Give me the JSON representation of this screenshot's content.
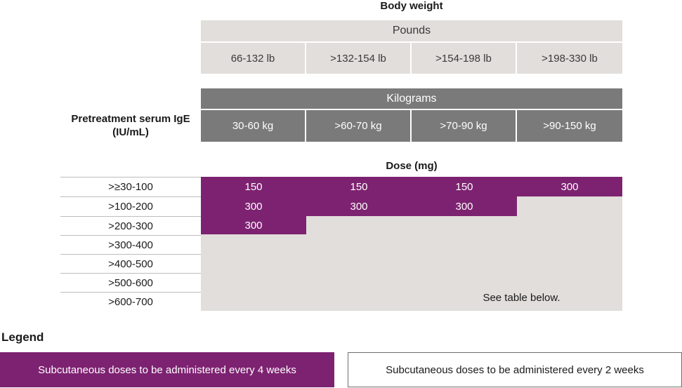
{
  "header": {
    "body_weight_title": "Body weight",
    "pounds_label": "Pounds",
    "pounds_ranges": [
      "66-132 lb",
      ">132-154 lb",
      ">154-198 lb",
      ">198-330 lb"
    ],
    "kilograms_label": "Kilograms",
    "kg_ranges": [
      "30-60 kg",
      ">60-70 kg",
      ">70-90 kg",
      ">90-150 kg"
    ]
  },
  "ige_label": "Pretreatment serum IgE (IU/mL)",
  "dose_title": "Dose (mg)",
  "ige_rows": [
    ">≥30-100",
    ">100-200",
    ">200-300",
    ">300-400",
    ">400-500",
    ">500-600",
    ">600-700"
  ],
  "doses": {
    "row1": [
      "150",
      "150",
      "150",
      "300"
    ],
    "row2": [
      "300",
      "300",
      "300"
    ],
    "row3": [
      "300"
    ]
  },
  "see_below_text": "See table below.",
  "legend": {
    "title": "Legend",
    "every_4_weeks": "Subcutaneous doses to be administered every 4 weeks",
    "every_2_weeks": "Subcutaneous doses to be administered every 2 weeks"
  },
  "colors": {
    "purple": "#7d2271",
    "light_grey": "#e1dedb",
    "dark_grey": "#7a7a7a"
  }
}
